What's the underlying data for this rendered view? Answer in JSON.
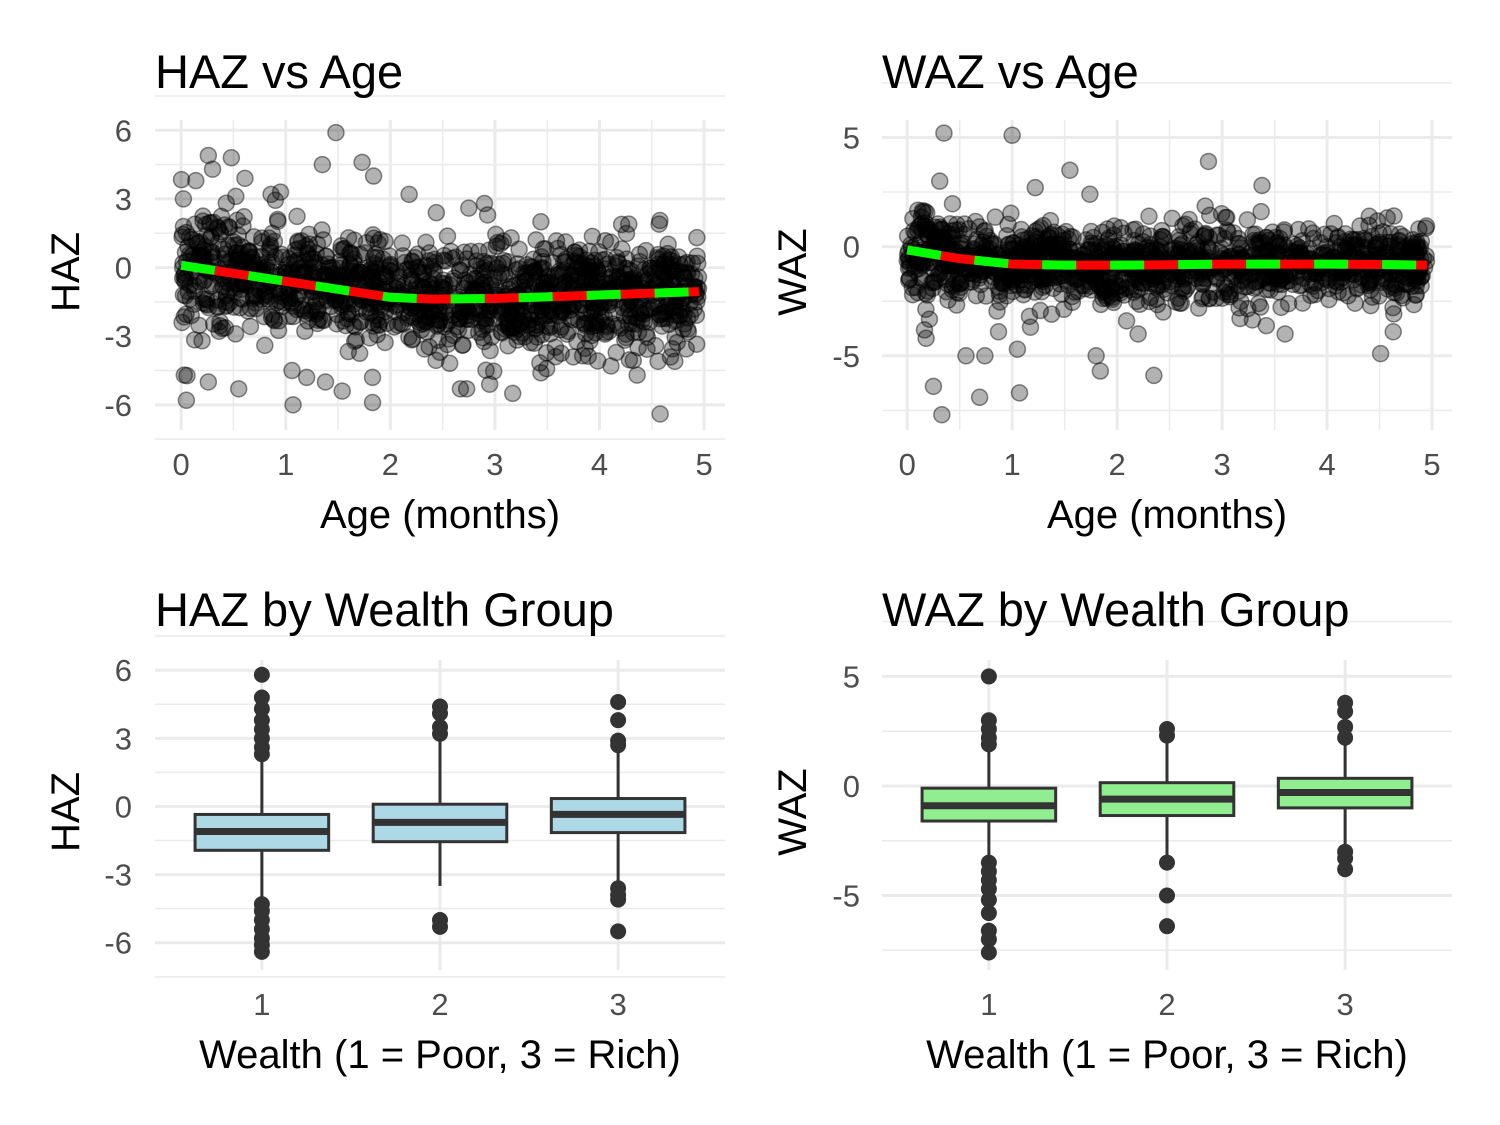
{
  "colors": {
    "grid": "#ebebeb",
    "point": "#000000",
    "trend_main": "#ff0000",
    "trend_dash": "#00ff00",
    "box_haz": "#add8e6",
    "box_waz": "#90ee90",
    "box_line": "#333333"
  },
  "chart_data": [
    {
      "type": "scatter",
      "title": "HAZ vs Age",
      "xlabel": "Age (months)",
      "ylabel": "HAZ",
      "xticks": [
        0,
        1,
        2,
        3,
        4,
        5
      ],
      "yticks": [
        -6,
        -3,
        0,
        3,
        6
      ],
      "xlim": [
        -0.25,
        5.2
      ],
      "ylim": [
        -7.1,
        6.45
      ],
      "grid": true,
      "point_opacity": 0.3,
      "trend_line": {
        "style": "red with green dashes",
        "x": [
          0,
          0.5,
          1,
          1.5,
          2,
          2.4,
          3,
          3.5,
          4,
          4.5,
          4.95
        ],
        "y": [
          0.1,
          -0.25,
          -0.6,
          -0.95,
          -1.3,
          -1.38,
          -1.35,
          -1.28,
          -1.2,
          -1.12,
          -1.05
        ]
      },
      "points": [
        [
          1.48,
          5.9
        ],
        [
          0.26,
          4.9
        ],
        [
          0.48,
          4.8
        ],
        [
          0.61,
          3.9
        ],
        [
          0.3,
          4.3
        ],
        [
          0.14,
          3.8
        ],
        [
          1.35,
          4.5
        ],
        [
          1.73,
          4.6
        ],
        [
          1.84,
          4.0
        ],
        [
          0.95,
          3.3
        ],
        [
          0.86,
          3.2
        ],
        [
          2.18,
          3.2
        ],
        [
          2.75,
          2.6
        ],
        [
          2.9,
          2.8
        ],
        [
          2.93,
          2.3
        ],
        [
          2.44,
          2.4
        ],
        [
          3.44,
          2.0
        ],
        [
          4.28,
          1.9
        ],
        [
          4.57,
          1.9
        ],
        [
          0.03,
          -4.7
        ],
        [
          0.05,
          -5.8
        ],
        [
          0.26,
          -5.0
        ],
        [
          0.55,
          -5.3
        ],
        [
          1.06,
          -4.5
        ],
        [
          1.07,
          -6.0
        ],
        [
          1.2,
          -4.8
        ],
        [
          1.38,
          -5.0
        ],
        [
          1.54,
          -5.4
        ],
        [
          1.83,
          -5.9
        ],
        [
          1.83,
          -4.8
        ],
        [
          2.67,
          -5.3
        ],
        [
          2.73,
          -5.3
        ],
        [
          2.95,
          -5.1
        ],
        [
          3.17,
          -5.5
        ],
        [
          3.44,
          -4.6
        ],
        [
          4.11,
          -4.3
        ],
        [
          4.36,
          -4.7
        ],
        [
          4.58,
          -6.4
        ],
        [
          4.56,
          -4.1
        ],
        [
          4.72,
          -4.1
        ],
        [
          0.8,
          -3.4
        ],
        [
          0.2,
          -3.2
        ],
        [
          0.52,
          -2.9
        ]
      ]
    },
    {
      "type": "scatter",
      "title": "WAZ vs Age",
      "xlabel": "Age (months)",
      "ylabel": "WAZ",
      "xticks": [
        0,
        1,
        2,
        3,
        4,
        5
      ],
      "yticks": [
        -5,
        0,
        5
      ],
      "xlim": [
        -0.24,
        5.19
      ],
      "ylim": [
        -8.4,
        5.8
      ],
      "grid": true,
      "point_opacity": 0.3,
      "trend_line": {
        "style": "red with green dashes",
        "x": [
          0,
          0.5,
          1,
          1.5,
          2,
          2.5,
          3,
          3.5,
          4,
          4.5,
          4.95
        ],
        "y": [
          -0.15,
          -0.55,
          -0.8,
          -0.85,
          -0.85,
          -0.83,
          -0.8,
          -0.8,
          -0.8,
          -0.82,
          -0.85
        ]
      },
      "points": [
        [
          0.35,
          5.2
        ],
        [
          1.0,
          5.1
        ],
        [
          2.87,
          3.9
        ],
        [
          1.55,
          3.5
        ],
        [
          0.31,
          3.0
        ],
        [
          3.38,
          2.8
        ],
        [
          1.22,
          2.7
        ],
        [
          1.74,
          2.4
        ],
        [
          0.25,
          -6.4
        ],
        [
          0.33,
          -7.7
        ],
        [
          0.69,
          -6.9
        ],
        [
          1.07,
          -6.7
        ],
        [
          0.56,
          -5.0
        ],
        [
          0.74,
          -5.0
        ],
        [
          1.05,
          -4.7
        ],
        [
          1.8,
          -5.0
        ],
        [
          1.84,
          -5.7
        ],
        [
          2.35,
          -5.9
        ],
        [
          4.51,
          -4.9
        ],
        [
          0.18,
          -4.2
        ],
        [
          0.87,
          -3.9
        ],
        [
          4.63,
          -3.9
        ],
        [
          2.2,
          -4.0
        ],
        [
          3.6,
          -4.0
        ]
      ]
    },
    {
      "type": "boxplot",
      "title": "HAZ by Wealth Group",
      "xlabel": "Wealth (1 = Poor, 3 = Rich)",
      "ylabel": "HAZ",
      "categories": [
        "1",
        "2",
        "3"
      ],
      "yticks": [
        -6,
        -3,
        0,
        3,
        6
      ],
      "ylim": [
        -7.2,
        6.45
      ],
      "grid": true,
      "boxes": [
        {
          "group": "1",
          "whisker_low": -4.2,
          "q1": -1.93,
          "median": -1.1,
          "q3": -0.35,
          "whisker_high": 2.1,
          "outliers": [
            2.3,
            2.6,
            3.0,
            3.4,
            3.8,
            4.3,
            4.8,
            5.8,
            -4.3,
            -4.6,
            -5.0,
            -5.4,
            -5.8,
            -6.1,
            -6.4
          ]
        },
        {
          "group": "2",
          "whisker_low": -3.5,
          "q1": -1.55,
          "median": -0.7,
          "q3": 0.1,
          "whisker_high": 3.0,
          "outliers": [
            3.2,
            3.5,
            4.1,
            4.4,
            -5.0,
            -5.3
          ]
        },
        {
          "group": "3",
          "whisker_low": -3.4,
          "q1": -1.15,
          "median": -0.35,
          "q3": 0.35,
          "whisker_high": 2.5,
          "outliers": [
            2.7,
            2.9,
            3.8,
            4.6,
            -3.6,
            -3.9,
            -4.1,
            -5.5
          ]
        }
      ]
    },
    {
      "type": "boxplot",
      "title": "WAZ by Wealth Group",
      "xlabel": "Wealth (1 = Poor, 3 = Rich)",
      "ylabel": "WAZ",
      "categories": [
        "1",
        "2",
        "3"
      ],
      "yticks": [
        -5,
        0,
        5
      ],
      "ylim": [
        -8.4,
        5.75
      ],
      "grid": true,
      "boxes": [
        {
          "group": "1",
          "whisker_low": -3.3,
          "q1": -1.6,
          "median": -0.9,
          "q3": -0.1,
          "whisker_high": 1.6,
          "outliers": [
            1.9,
            2.2,
            2.6,
            3.0,
            5.0,
            -3.5,
            -3.9,
            -4.3,
            -4.7,
            -5.2,
            -5.8,
            -6.6,
            -7.0,
            -7.6
          ]
        },
        {
          "group": "2",
          "whisker_low": -3.3,
          "q1": -1.35,
          "median": -0.6,
          "q3": 0.15,
          "whisker_high": 2.0,
          "outliers": [
            2.3,
            2.6,
            -3.5,
            -5.0,
            -6.4
          ]
        },
        {
          "group": "3",
          "whisker_low": -2.8,
          "q1": -1.0,
          "median": -0.3,
          "q3": 0.35,
          "whisker_high": 1.9,
          "outliers": [
            2.2,
            2.7,
            3.4,
            3.8,
            -3.0,
            -3.3,
            -3.8
          ]
        }
      ]
    }
  ]
}
